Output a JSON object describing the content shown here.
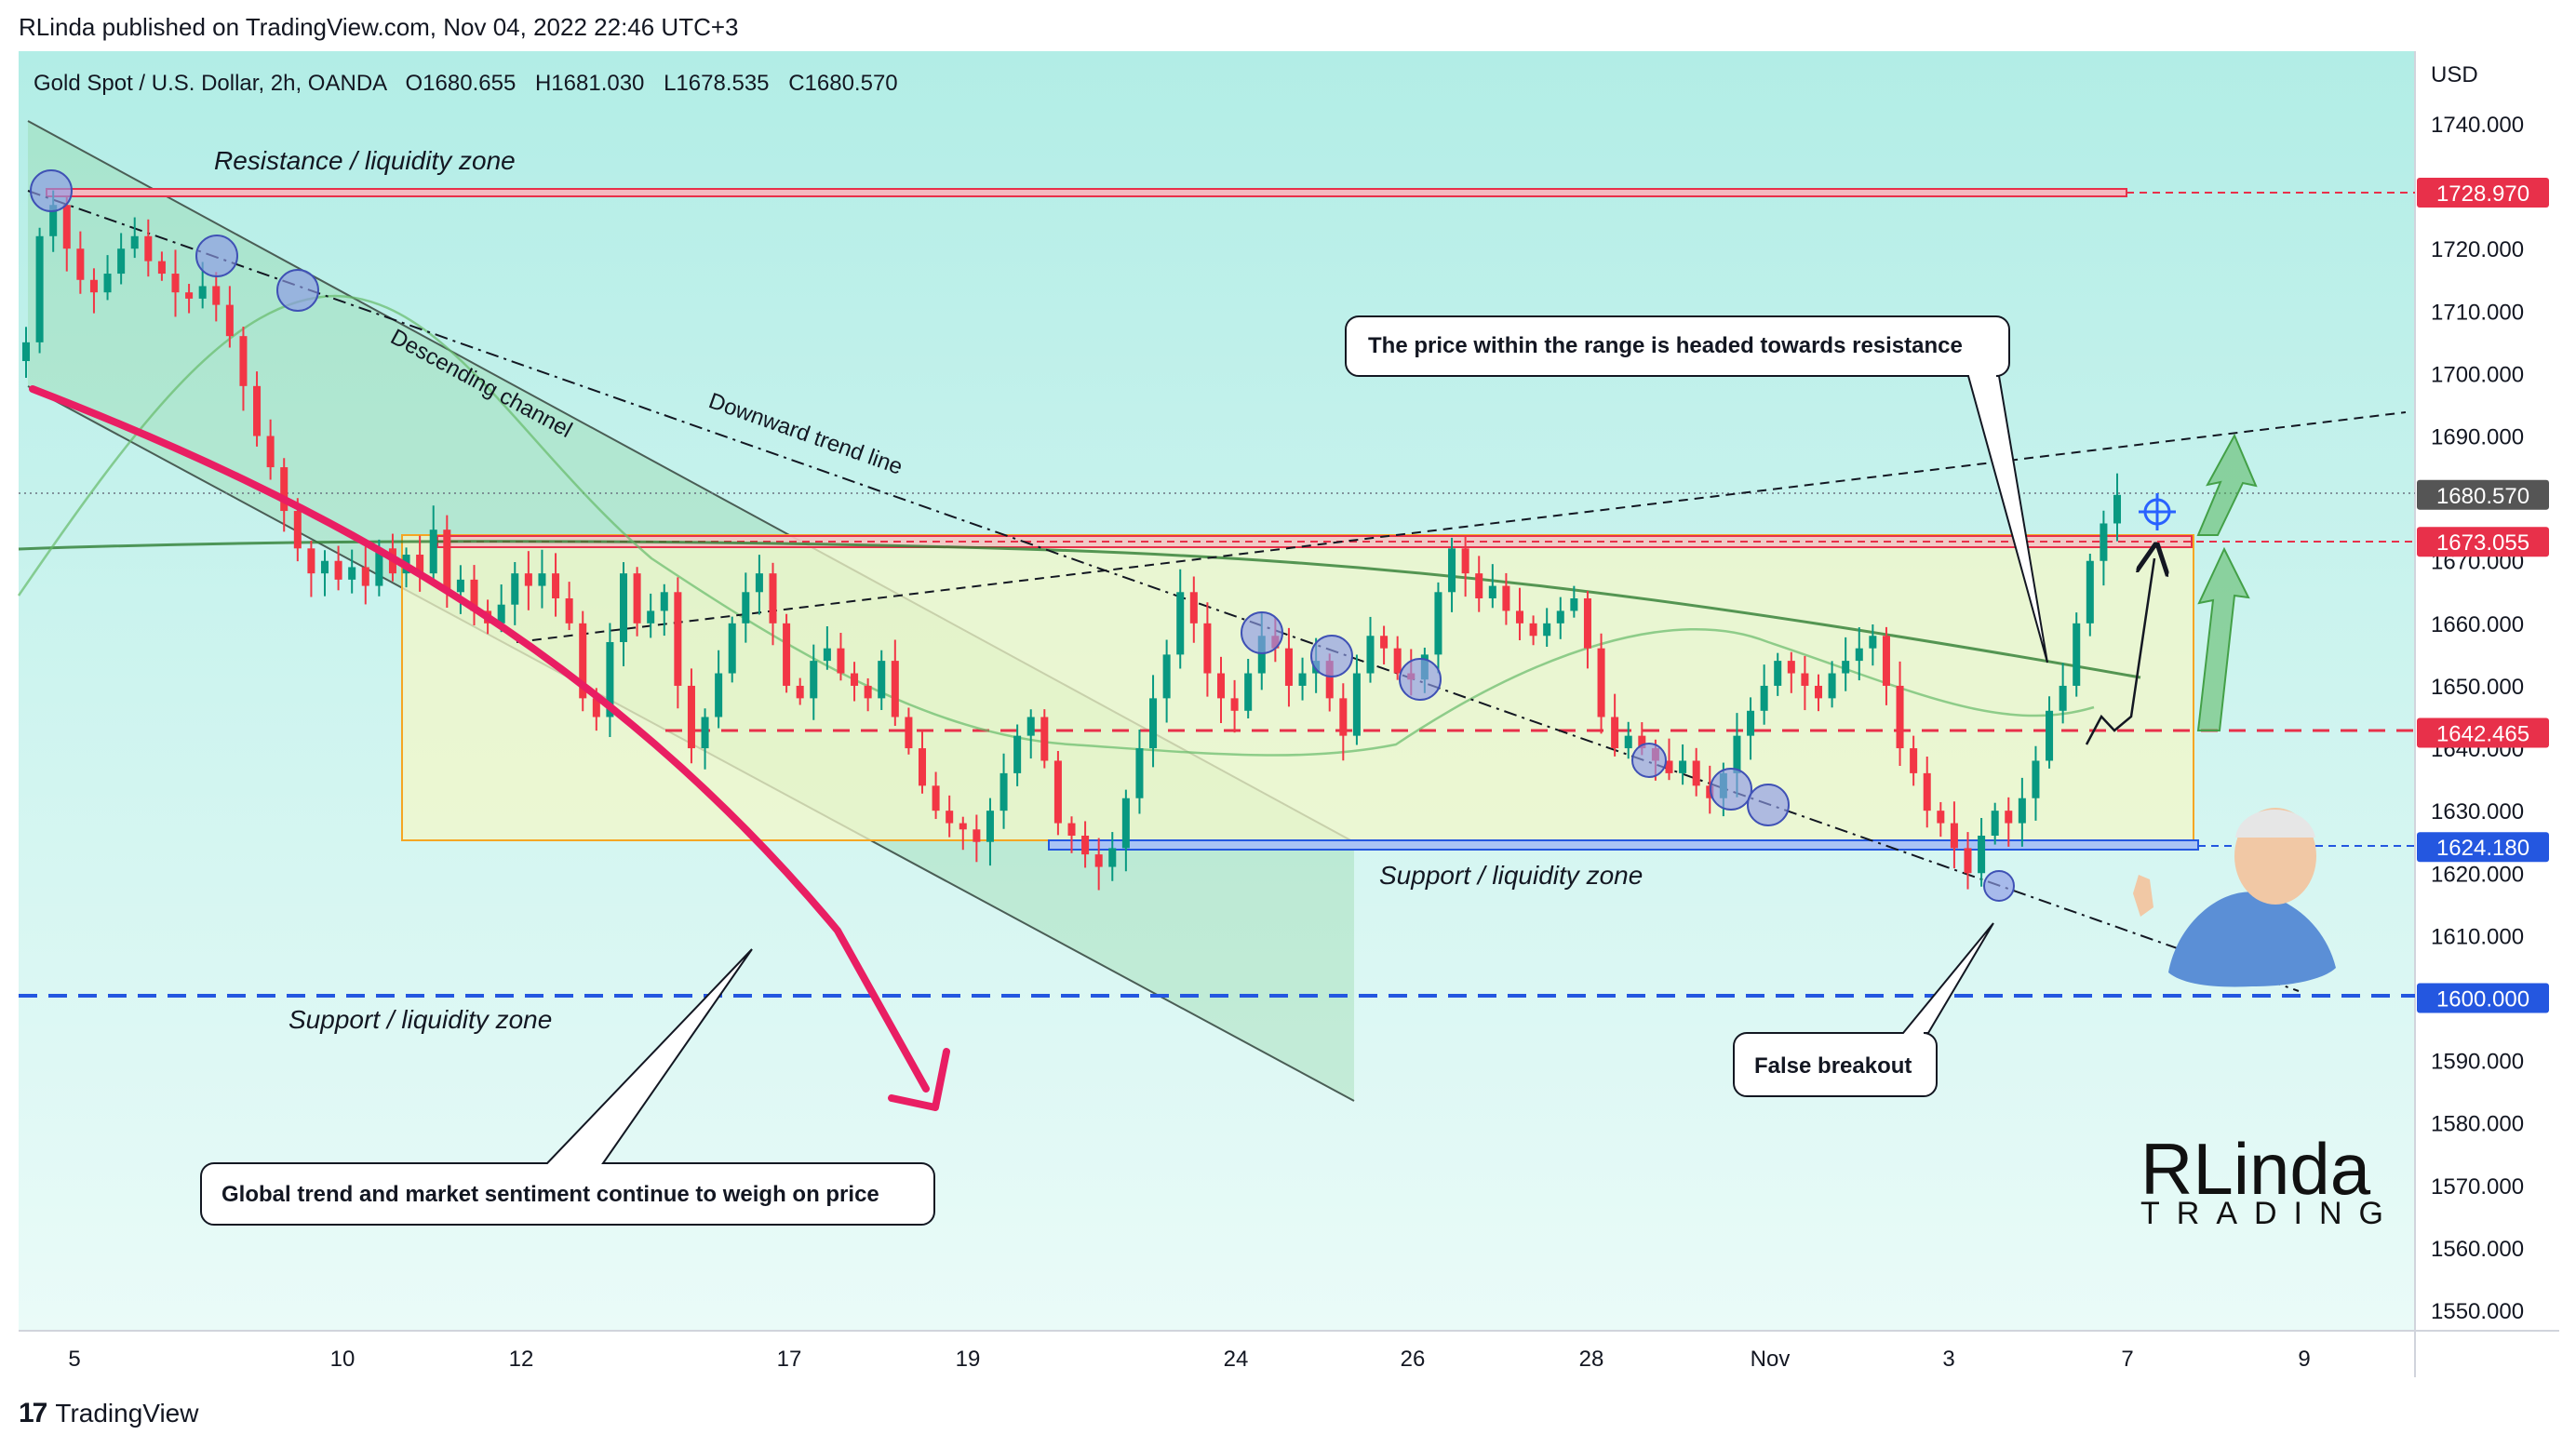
{
  "header": {
    "published": "RLinda published on TradingView.com, Nov 04, 2022 22:46 UTC+3"
  },
  "instrument": {
    "title": "Gold Spot / U.S. Dollar, 2h, OANDA",
    "open": "O1680.655",
    "high": "H1681.030",
    "low": "L1678.535",
    "close": "C1680.570"
  },
  "price_axis": {
    "currency": "USD",
    "labels": [
      "1740.000",
      "1720.000",
      "1710.000",
      "1700.000",
      "1690.000",
      "1670.000",
      "1660.000",
      "1650.000",
      "1640.000",
      "1630.000",
      "1620.000",
      "1610.000",
      "1590.000",
      "1580.000",
      "1570.000",
      "1560.000",
      "1550.000"
    ],
    "badges": [
      {
        "text": "1728.970",
        "color": "#e8304a"
      },
      {
        "text": "1680.570",
        "color": "#555555"
      },
      {
        "text": "1673.055",
        "color": "#e8304a"
      },
      {
        "text": "1642.465",
        "color": "#e8304a"
      },
      {
        "text": "1624.180",
        "color": "#2457e0"
      },
      {
        "text": "1600.000",
        "color": "#2457e0"
      }
    ]
  },
  "time_axis": {
    "labels": [
      "5",
      "10",
      "12",
      "17",
      "19",
      "24",
      "26",
      "28",
      "Nov",
      "3",
      "7",
      "9"
    ]
  },
  "annotations": {
    "resistance_zone": "Resistance / liquidity zone",
    "descending_channel": "Descending channel",
    "downward_trend_line": "Downward trend line",
    "support_zone_right": "Support / liquidity zone",
    "support_zone_left": "Support / liquidity zone",
    "callout_resistance": "The price within the range is headed towards resistance",
    "callout_false_breakout": "False breakout",
    "callout_global_trend": "Global trend and market sentiment continue to weigh on price"
  },
  "brand": {
    "logo_main": "RLinda",
    "logo_sub": "TRADING",
    "footer": "TradingView"
  },
  "colors": {
    "bullish": "#089981",
    "bearish": "#f23645",
    "resistance": "#e8304a",
    "support": "#2457e0",
    "range_fill": "#f3f7c8",
    "range_border": "#f5a623",
    "background_top": "#b2ede6",
    "background_bottom": "#eafbf8"
  },
  "chart_data": {
    "type": "candlestick",
    "title": "Gold Spot / U.S. Dollar, 2h, OANDA",
    "ylabel": "USD",
    "ylim": [
      1545,
      1744
    ],
    "levels": {
      "resistance": 1728.97,
      "last_price": 1680.57,
      "range_top": 1673.055,
      "mid_level": 1642.465,
      "range_bottom": 1624.18,
      "global_support": 1600.0
    },
    "x_ticks": [
      "5",
      "10",
      "12",
      "17",
      "19",
      "24",
      "26",
      "28",
      "Nov",
      "3",
      "7",
      "9"
    ],
    "close_path": [
      1705,
      1722,
      1727,
      1720,
      1715,
      1713,
      1716,
      1720,
      1722,
      1718,
      1716,
      1713,
      1712,
      1714,
      1711,
      1706,
      1698,
      1690,
      1685,
      1678,
      1672,
      1668,
      1670,
      1667,
      1669,
      1666,
      1672,
      1668,
      1671,
      1668,
      1675,
      1665,
      1667,
      1662,
      1660,
      1663,
      1668,
      1666,
      1668,
      1664,
      1660,
      1648,
      1645,
      1657,
      1668,
      1660,
      1662,
      1665,
      1650,
      1640,
      1645,
      1652,
      1660,
      1665,
      1668,
      1660,
      1650,
      1648,
      1654,
      1656,
      1652,
      1650,
      1648,
      1654,
      1645,
      1640,
      1634,
      1630,
      1628,
      1627,
      1625,
      1630,
      1636,
      1642,
      1645,
      1638,
      1628,
      1626,
      1623,
      1621,
      1624,
      1632,
      1640,
      1648,
      1655,
      1665,
      1660,
      1652,
      1648,
      1646,
      1652,
      1658,
      1656,
      1650,
      1652,
      1654,
      1648,
      1642,
      1652,
      1658,
      1656,
      1652,
      1651,
      1655,
      1665,
      1672,
      1668,
      1664,
      1666,
      1662,
      1660,
      1658,
      1660,
      1662,
      1664,
      1656,
      1645,
      1640,
      1642,
      1640,
      1638,
      1636,
      1638,
      1634,
      1632,
      1636,
      1642,
      1646,
      1650,
      1654,
      1652,
      1650,
      1648,
      1652,
      1654,
      1656,
      1658,
      1650,
      1640,
      1636,
      1630,
      1628,
      1624,
      1620,
      1626,
      1630,
      1628,
      1632,
      1638,
      1646,
      1650,
      1660,
      1670,
      1676,
      1680.57
    ]
  }
}
